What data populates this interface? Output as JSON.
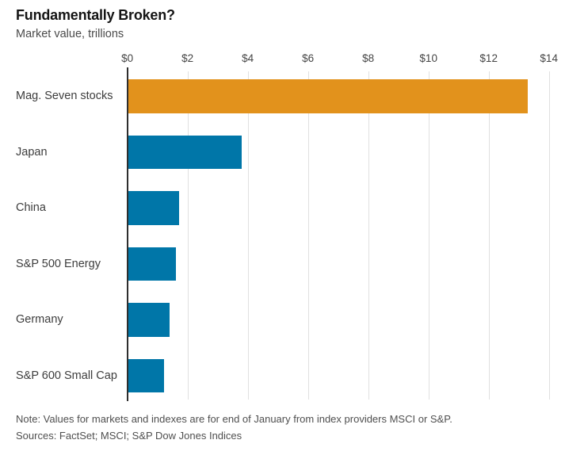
{
  "header": {
    "title": "Fundamentally Broken?",
    "subtitle": "Market value, trillions"
  },
  "chart_data": {
    "type": "bar",
    "orientation": "horizontal",
    "title": "Fundamentally Broken?",
    "subtitle": "Market value, trillions",
    "categories": [
      "Mag. Seven stocks",
      "Japan",
      "China",
      "S&P 500 Energy",
      "Germany",
      "S&P 600 Small Cap"
    ],
    "values": [
      13.3,
      3.8,
      1.7,
      1.6,
      1.4,
      1.2
    ],
    "unit": "$ trillions",
    "xlim": [
      0,
      14
    ],
    "x_tick_values": [
      0,
      2,
      4,
      6,
      8,
      10,
      12,
      14
    ],
    "x_tick_labels": [
      "$0",
      "$2",
      "$4",
      "$6",
      "$8",
      "$10",
      "$12",
      "$14"
    ],
    "grid": true,
    "legend": "none",
    "highlight_index": 0,
    "colors": {
      "highlight": "#e2921c",
      "default": "#0076a8",
      "gridline": "#e0e0e0",
      "axis": "#2e2e2e"
    }
  },
  "footer": {
    "note": "Note: Values for markets and indexes are for end of January from index providers MSCI or S&P.",
    "sources": "Sources: FactSet; MSCI; S&P Dow Jones Indices"
  }
}
